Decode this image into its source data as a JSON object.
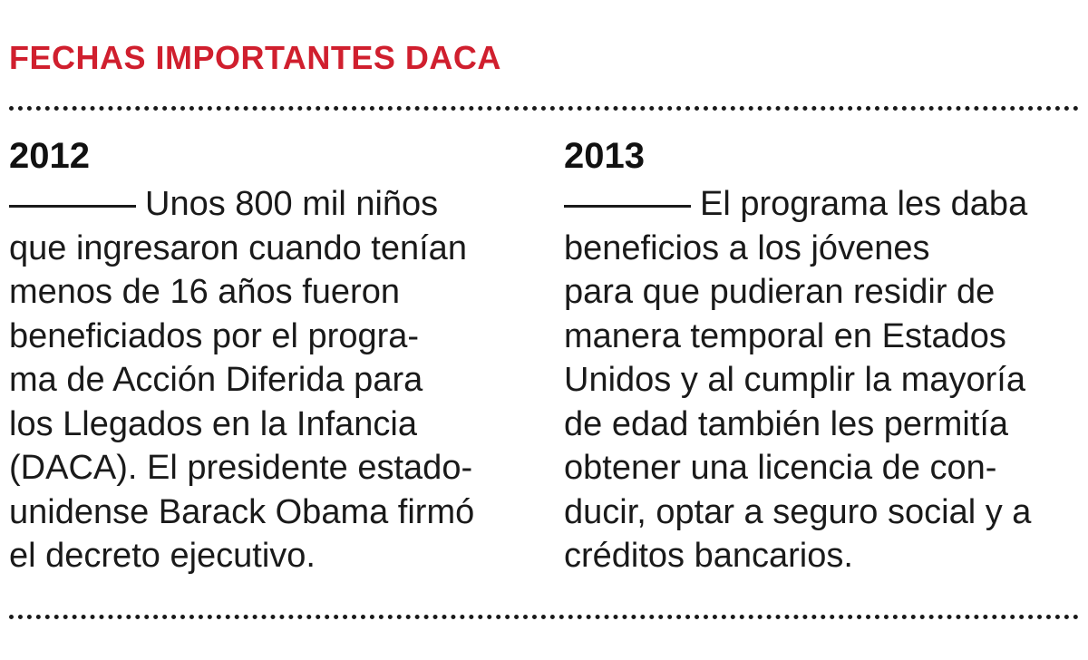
{
  "header": {
    "title": "FECHAS IMPORTANTES DACA"
  },
  "colors": {
    "title": "#d01f2e",
    "text": "#1a1a1a",
    "background": "#ffffff"
  },
  "columns": [
    {
      "year": "2012",
      "lines": [
        "Unos 800 mil niños",
        "que ingresaron cuando tenían",
        "menos de 16 años fueron",
        "beneficiados por el progra-",
        "ma de Acción Diferida para",
        "los Llegados en la Infancia",
        "(DACA). El presidente estado-",
        "unidense Barack Obama firmó",
        "el decreto ejecutivo."
      ]
    },
    {
      "year": "2013",
      "lines": [
        "El programa les daba",
        "beneficios a los jóvenes",
        "para que pudieran residir de",
        "manera temporal en Estados",
        "Unidos y al cumplir la mayoría",
        "de edad también les permitía",
        "obtener una licencia de con-",
        "ducir, optar a seguro social y a",
        "créditos bancarios."
      ]
    }
  ]
}
